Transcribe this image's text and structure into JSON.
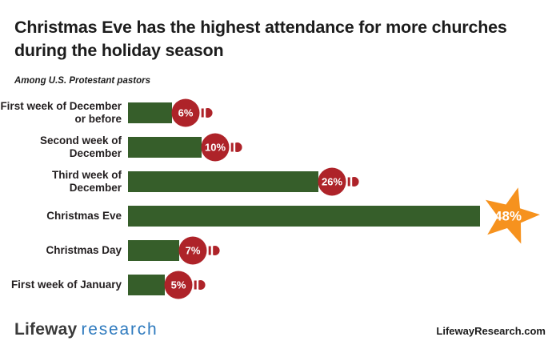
{
  "header": {
    "title": "Christmas Eve has the highest attendance for more churches during the holiday season",
    "subtitle": "Among U.S. Protestant pastors"
  },
  "colors": {
    "bar_green": "#365e2a",
    "ornament_red": "#ae2329",
    "star_orange": "#f6921e",
    "logo_blue": "#2e7abe",
    "text_dark": "#231f20",
    "label_text_white": "#ffffff"
  },
  "chart_data": {
    "type": "bar",
    "orientation": "horizontal",
    "title": "Christmas Eve has the highest attendance for more churches during the holiday season",
    "subtitle": "Among U.S. Protestant pastors",
    "categories": [
      "First week of December or before",
      "Second week of December",
      "Third week of December",
      "Christmas Eve",
      "Christmas Day",
      "First week of January"
    ],
    "values": [
      6,
      10,
      26,
      48,
      7,
      5
    ],
    "value_labels": [
      "6%",
      "10%",
      "26%",
      "48%",
      "7%",
      "5%"
    ],
    "xlim": [
      0,
      50
    ],
    "grid": false,
    "legend": false,
    "highlight": {
      "index": 3,
      "marker": "star-burst",
      "color": "#f6921e"
    },
    "marker_default": "christmas-ornament",
    "rows": [
      {
        "label_lines": [
          "First week of December",
          "or before"
        ],
        "value": 6,
        "display": "6%",
        "marker": "ornament"
      },
      {
        "label_lines": [
          "Second week of",
          "December"
        ],
        "value": 10,
        "display": "10%",
        "marker": "ornament"
      },
      {
        "label_lines": [
          "Third week of",
          "December"
        ],
        "value": 26,
        "display": "26%",
        "marker": "ornament"
      },
      {
        "label_lines": [
          "Christmas Eve"
        ],
        "value": 48,
        "display": "48%",
        "marker": "star"
      },
      {
        "label_lines": [
          "Christmas Day"
        ],
        "value": 7,
        "display": "7%",
        "marker": "ornament"
      },
      {
        "label_lines": [
          "First week of January"
        ],
        "value": 5,
        "display": "5%",
        "marker": "ornament"
      }
    ]
  },
  "footer": {
    "logo_primary": "Lifeway",
    "logo_secondary": "research",
    "site": "LifewayResearch.com"
  }
}
